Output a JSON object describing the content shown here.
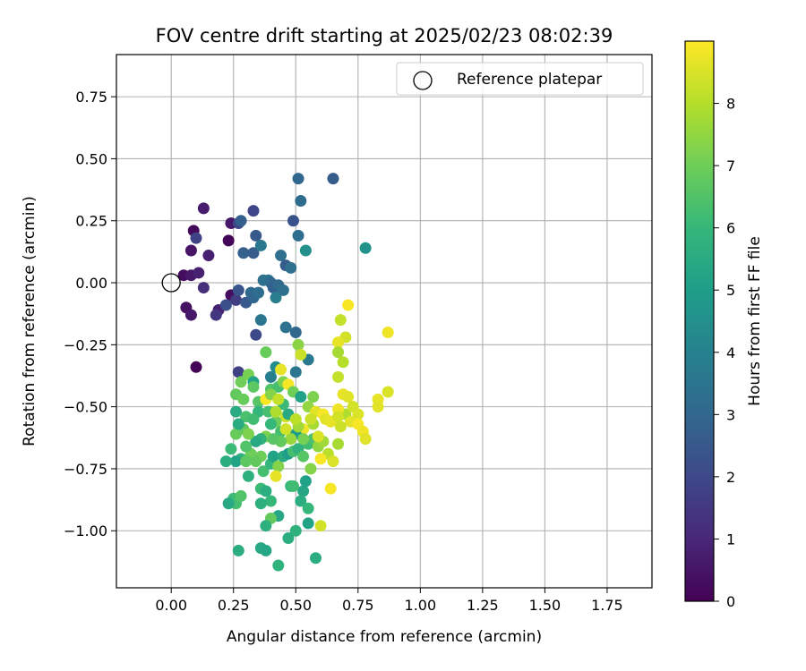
{
  "chart_data": {
    "type": "scatter",
    "title": "FOV centre drift starting at 2025/02/23 08:02:39",
    "xlabel": "Angular distance from reference (arcmin)",
    "ylabel": "Rotation from reference (arcmin)",
    "xlim": [
      -0.22,
      1.93
    ],
    "ylim": [
      -1.23,
      0.92
    ],
    "xticks": [
      0.0,
      0.25,
      0.5,
      0.75,
      1.0,
      1.25,
      1.5,
      1.75
    ],
    "xtick_labels": [
      "0.00",
      "0.25",
      "0.50",
      "0.75",
      "1.00",
      "1.25",
      "1.50",
      "1.75"
    ],
    "yticks": [
      0.75,
      0.5,
      0.25,
      0.0,
      -0.25,
      -0.5,
      -0.75,
      -1.0
    ],
    "ytick_labels": [
      "0.75",
      "0.50",
      "0.25",
      "0.00",
      "−0.25",
      "−0.50",
      "−0.75",
      "−1.00"
    ],
    "grid": true,
    "legend": {
      "position": "top-right",
      "entries": [
        "Reference platepar"
      ]
    },
    "reference_point": {
      "x": 0.0,
      "y": 0.0,
      "marker": "open-circle",
      "label": "Reference platepar"
    },
    "colorbar": {
      "label": "Hours from first FF file",
      "range": [
        0,
        9
      ],
      "ticks": [
        0,
        1,
        2,
        3,
        4,
        5,
        6,
        7,
        8
      ],
      "tick_labels": [
        "0",
        "1",
        "2",
        "3",
        "4",
        "5",
        "6",
        "7",
        "8"
      ],
      "colormap": "viridis",
      "colormap_stops": [
        "#440154",
        "#482878",
        "#3e4989",
        "#31688e",
        "#26828e",
        "#1f9e89",
        "#35b779",
        "#6ece58",
        "#b5de2b",
        "#fde725"
      ]
    },
    "series": [
      {
        "points": [
          [
            0.05,
            0.03,
            0.3
          ],
          [
            0.08,
            0.03,
            0.6
          ],
          [
            0.11,
            0.04,
            0.8
          ],
          [
            0.06,
            -0.1,
            0.4
          ],
          [
            0.08,
            -0.13,
            0.6
          ],
          [
            0.09,
            0.21,
            0.2
          ],
          [
            0.08,
            0.13,
            0.5
          ],
          [
            0.1,
            0.18,
            1.8
          ],
          [
            0.13,
            0.3,
            0.7
          ],
          [
            0.15,
            0.11,
            0.8
          ],
          [
            0.13,
            -0.02,
            1.2
          ],
          [
            0.1,
            -0.34,
            0.1
          ],
          [
            0.23,
            0.17,
            0.1
          ],
          [
            0.24,
            0.24,
            0.6
          ],
          [
            0.27,
            0.24,
            1.9
          ],
          [
            0.28,
            0.25,
            2.7
          ],
          [
            0.33,
            0.29,
            1.9
          ],
          [
            0.19,
            -0.11,
            0.8
          ],
          [
            0.18,
            -0.13,
            1.4
          ],
          [
            0.24,
            -0.05,
            0.3
          ],
          [
            0.22,
            -0.09,
            2.2
          ],
          [
            0.26,
            -0.07,
            1.6
          ],
          [
            0.27,
            -0.03,
            2.4
          ],
          [
            0.27,
            -0.36,
            1.8
          ],
          [
            0.29,
            0.12,
            2.8
          ],
          [
            0.33,
            0.12,
            2.6
          ],
          [
            0.3,
            -0.08,
            2.5
          ],
          [
            0.32,
            -0.04,
            3.0
          ],
          [
            0.33,
            -0.06,
            2.9
          ],
          [
            0.35,
            -0.04,
            3.2
          ],
          [
            0.34,
            -0.21,
            2.0
          ],
          [
            0.34,
            0.19,
            2.5
          ],
          [
            0.36,
            0.15,
            3.6
          ],
          [
            0.37,
            0.01,
            3.3
          ],
          [
            0.39,
            0.01,
            3.4
          ],
          [
            0.4,
            0.0,
            3.0
          ],
          [
            0.41,
            -0.02,
            2.7
          ],
          [
            0.42,
            -0.06,
            3.8
          ],
          [
            0.43,
            -0.01,
            3.1
          ],
          [
            0.45,
            -0.03,
            3.3
          ],
          [
            0.44,
            0.11,
            3.3
          ],
          [
            0.46,
            0.07,
            2.6
          ],
          [
            0.48,
            0.06,
            3.3
          ],
          [
            0.46,
            -0.18,
            3.4
          ],
          [
            0.5,
            -0.2,
            3.0
          ],
          [
            0.49,
            0.25,
            2.3
          ],
          [
            0.51,
            0.42,
            3.0
          ],
          [
            0.52,
            0.33,
            3.2
          ],
          [
            0.51,
            0.19,
            3.2
          ],
          [
            0.54,
            0.13,
            4.5
          ],
          [
            0.65,
            0.42,
            2.6
          ],
          [
            0.78,
            0.14,
            4.6
          ],
          [
            0.55,
            -0.31,
            3.6
          ],
          [
            0.36,
            -0.15,
            3.5
          ],
          [
            0.4,
            -0.38,
            3.9
          ],
          [
            0.26,
            -0.45,
            6.8
          ],
          [
            0.28,
            -0.4,
            7.0
          ],
          [
            0.31,
            -0.37,
            7.1
          ],
          [
            0.33,
            -0.4,
            5.2
          ],
          [
            0.26,
            -0.52,
            5.5
          ],
          [
            0.29,
            -0.47,
            6.9
          ],
          [
            0.35,
            -0.48,
            6.6
          ],
          [
            0.38,
            -0.47,
            8.9
          ],
          [
            0.4,
            -0.43,
            6.5
          ],
          [
            0.42,
            -0.34,
            4.4
          ],
          [
            0.43,
            -0.42,
            6.3
          ],
          [
            0.44,
            -0.35,
            8.7
          ],
          [
            0.45,
            -0.4,
            7.2
          ],
          [
            0.47,
            -0.41,
            8.9
          ],
          [
            0.49,
            -0.44,
            7.0
          ],
          [
            0.5,
            -0.36,
            3.5
          ],
          [
            0.52,
            -0.46,
            5.1
          ],
          [
            0.38,
            -0.28,
            6.9
          ],
          [
            0.51,
            -0.25,
            7.4
          ],
          [
            0.52,
            -0.29,
            8.3
          ],
          [
            0.55,
            -0.5,
            7.5
          ],
          [
            0.57,
            -0.46,
            7.2
          ],
          [
            0.58,
            -0.52,
            8.6
          ],
          [
            0.61,
            -0.53,
            8.9
          ],
          [
            0.62,
            -0.55,
            8.6
          ],
          [
            0.57,
            -0.57,
            7.8
          ],
          [
            0.53,
            -0.59,
            8.8
          ],
          [
            0.5,
            -0.61,
            5.0
          ],
          [
            0.48,
            -0.63,
            7.6
          ],
          [
            0.46,
            -0.54,
            8.3
          ],
          [
            0.44,
            -0.6,
            6.3
          ],
          [
            0.42,
            -0.56,
            7.0
          ],
          [
            0.4,
            -0.57,
            6.0
          ],
          [
            0.38,
            -0.62,
            7.2
          ],
          [
            0.36,
            -0.63,
            5.8
          ],
          [
            0.34,
            -0.64,
            5.4
          ],
          [
            0.32,
            -0.69,
            7.0
          ],
          [
            0.3,
            -0.66,
            6.5
          ],
          [
            0.28,
            -0.71,
            5.8
          ],
          [
            0.26,
            -0.72,
            5.2
          ],
          [
            0.24,
            -0.67,
            6.1
          ],
          [
            0.22,
            -0.72,
            5.6
          ],
          [
            0.26,
            -0.61,
            6.9
          ],
          [
            0.29,
            -0.59,
            6.8
          ],
          [
            0.3,
            -0.72,
            6.7
          ],
          [
            0.31,
            -0.78,
            5.7
          ],
          [
            0.36,
            -0.7,
            7.0
          ],
          [
            0.37,
            -0.76,
            6.3
          ],
          [
            0.4,
            -0.73,
            5.9
          ],
          [
            0.41,
            -0.7,
            5.2
          ],
          [
            0.43,
            -0.74,
            7.3
          ],
          [
            0.45,
            -0.7,
            5.5
          ],
          [
            0.47,
            -0.69,
            5.0
          ],
          [
            0.49,
            -0.68,
            6.3
          ],
          [
            0.51,
            -0.67,
            5.8
          ],
          [
            0.53,
            -0.7,
            6.6
          ],
          [
            0.55,
            -0.65,
            6.2
          ],
          [
            0.57,
            -0.63,
            6.4
          ],
          [
            0.59,
            -0.66,
            7.5
          ],
          [
            0.61,
            -0.64,
            7.7
          ],
          [
            0.63,
            -0.69,
            8.1
          ],
          [
            0.65,
            -0.72,
            8.5
          ],
          [
            0.67,
            -0.65,
            7.8
          ],
          [
            0.42,
            -0.78,
            8.7
          ],
          [
            0.48,
            -0.82,
            6.0
          ],
          [
            0.53,
            -0.84,
            5.3
          ],
          [
            0.54,
            -0.8,
            5.1
          ],
          [
            0.52,
            -0.88,
            5.6
          ],
          [
            0.55,
            -0.97,
            5.2
          ],
          [
            0.5,
            -1.0,
            5.8
          ],
          [
            0.47,
            -1.03,
            5.6
          ],
          [
            0.6,
            -0.98,
            8.4
          ],
          [
            0.58,
            -1.11,
            5.6
          ],
          [
            0.43,
            -0.94,
            5.3
          ],
          [
            0.4,
            -0.95,
            6.8
          ],
          [
            0.38,
            -0.98,
            5.7
          ],
          [
            0.36,
            -1.07,
            5.4
          ],
          [
            0.38,
            -1.08,
            5.3
          ],
          [
            0.43,
            -1.14,
            5.8
          ],
          [
            0.27,
            -1.08,
            5.6
          ],
          [
            0.25,
            -0.87,
            6.1
          ],
          [
            0.26,
            -0.89,
            6.3
          ],
          [
            0.28,
            -0.86,
            6.5
          ],
          [
            0.23,
            -0.89,
            5.4
          ],
          [
            0.36,
            -0.83,
            6.1
          ],
          [
            0.38,
            -0.84,
            5.6
          ],
          [
            0.4,
            -0.88,
            6.0
          ],
          [
            0.36,
            -0.89,
            5.7
          ],
          [
            0.49,
            -0.82,
            6.2
          ],
          [
            0.55,
            -0.91,
            6.0
          ],
          [
            0.71,
            -0.09,
            8.9
          ],
          [
            0.68,
            -0.15,
            8.2
          ],
          [
            0.7,
            -0.22,
            8.4
          ],
          [
            0.67,
            -0.24,
            8.7
          ],
          [
            0.67,
            -0.28,
            7.8
          ],
          [
            0.69,
            -0.32,
            8.0
          ],
          [
            0.67,
            -0.38,
            8.2
          ],
          [
            0.69,
            -0.45,
            8.7
          ],
          [
            0.71,
            -0.46,
            8.6
          ],
          [
            0.7,
            -0.53,
            7.9
          ],
          [
            0.73,
            -0.5,
            8.4
          ],
          [
            0.75,
            -0.53,
            8.5
          ],
          [
            0.72,
            -0.56,
            8.6
          ],
          [
            0.75,
            -0.57,
            8.9
          ],
          [
            0.77,
            -0.6,
            8.8
          ],
          [
            0.78,
            -0.63,
            8.6
          ],
          [
            0.67,
            -0.51,
            8.8
          ],
          [
            0.68,
            -0.58,
            8.3
          ],
          [
            0.64,
            -0.56,
            8.7
          ],
          [
            0.83,
            -0.47,
            8.7
          ],
          [
            0.83,
            -0.5,
            8.6
          ],
          [
            0.87,
            -0.44,
            8.5
          ],
          [
            0.87,
            -0.2,
            8.8
          ],
          [
            0.6,
            -0.71,
            8.9
          ],
          [
            0.59,
            -0.62,
            8.5
          ],
          [
            0.64,
            -0.83,
            8.9
          ],
          [
            0.67,
            -0.54,
            8.4
          ],
          [
            0.56,
            -0.55,
            8.3
          ],
          [
            0.4,
            -0.45,
            7.3
          ],
          [
            0.33,
            -0.42,
            6.7
          ],
          [
            0.35,
            -0.52,
            5.9
          ],
          [
            0.3,
            -0.54,
            6.4
          ],
          [
            0.27,
            -0.57,
            5.5
          ],
          [
            0.45,
            -0.49,
            6.1
          ],
          [
            0.47,
            -0.53,
            5.4
          ],
          [
            0.44,
            -0.64,
            6.8
          ],
          [
            0.41,
            -0.63,
            6.6
          ],
          [
            0.39,
            -0.52,
            6.3
          ],
          [
            0.46,
            -0.59,
            8.4
          ],
          [
            0.56,
            -0.75,
            7.3
          ],
          [
            0.51,
            -0.58,
            7.7
          ],
          [
            0.53,
            -0.63,
            7.1
          ],
          [
            0.42,
            -0.52,
            7.9
          ],
          [
            0.43,
            -0.47,
            8.2
          ],
          [
            0.33,
            -0.55,
            6.2
          ],
          [
            0.5,
            -0.55,
            8.1
          ],
          [
            0.34,
            -0.72,
            6.8
          ],
          [
            0.31,
            -0.61,
            7.2
          ]
        ]
      }
    ]
  }
}
